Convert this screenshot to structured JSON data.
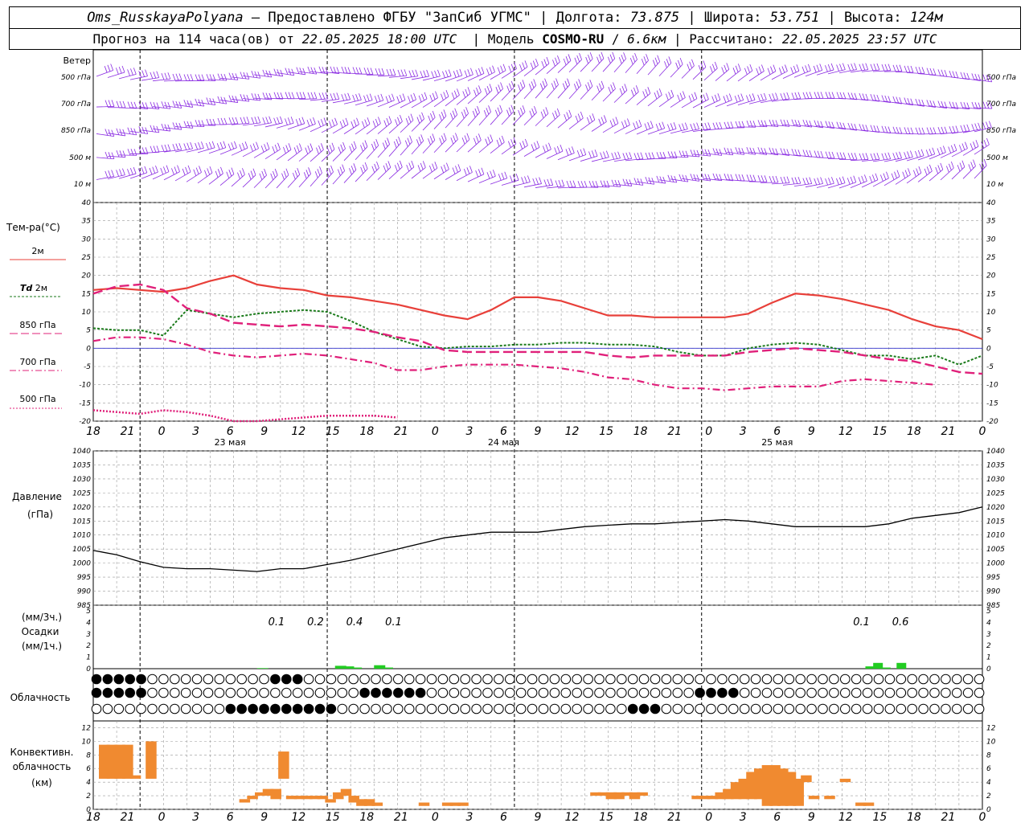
{
  "header": {
    "station": "Oms_RusskayaPolyana",
    "provider": "Предоставлено ФГБУ \"ЗапСиб УГМС\"",
    "lon_label": "Долгота:",
    "lon": "73.875",
    "lat_label": "Широта:",
    "lat": "53.751",
    "alt_label": "Высота:",
    "alt": "124м",
    "forecast_prefix": "Прогноз на 114 часа(ов) от",
    "forecast_from": "22.05.2025 18:00 UTC",
    "model_label": "Модель",
    "model": "COSMO-RU",
    "model_res": "6.6км",
    "computed_label": "Рассчитано:",
    "computed": "22.05.2025 23:57 UTC"
  },
  "labels": {
    "wind": "Ветер",
    "wind_levels": [
      "500 гПа",
      "700 гПа",
      "850 гПа",
      "500 м",
      "10 м"
    ],
    "temp": "Тем-ра(°C)",
    "t2m": "2м",
    "td": "Td",
    "td2m": "2м",
    "t850": "850 гПа",
    "t700": "700 гПа",
    "t500": "500 гПа",
    "pressure": "Давление",
    "pressure_unit": "(гПа)",
    "precip_unit3": "(мм/3ч.)",
    "precip": "Осадки",
    "precip_unit1": "(мм/1ч.)",
    "cloud": "Облачность",
    "conv1": "Конвективн.",
    "conv2": "облачность",
    "conv3": "(км)"
  },
  "days": [
    "23 мая",
    "24 мая",
    "25 мая"
  ],
  "hour_labels": [
    "18",
    "21",
    "0",
    "3",
    "6",
    "9",
    "12",
    "15",
    "18",
    "21",
    "0",
    "3",
    "6",
    "9",
    "12",
    "15",
    "18",
    "21",
    "0",
    "3",
    "6",
    "9",
    "12",
    "15",
    "18",
    "21",
    "0"
  ],
  "colors": {
    "t2m": "#e8403a",
    "td": "#1a7a1a",
    "t850": "#e0207a",
    "t700": "#e0207a",
    "t500": "#e0207a",
    "wind": "#8a2be2",
    "precip": "#22cc22",
    "conv": "#f08a30",
    "zero": "#3333cc"
  },
  "chart_data": [
    {
      "type": "line",
      "title": "Тем-ра(°C)",
      "x_hours": [
        0,
        3,
        6,
        9,
        12,
        15,
        18,
        21,
        24,
        27,
        30,
        33,
        36,
        39,
        42,
        45,
        48,
        51,
        54,
        57,
        60,
        63,
        66,
        69,
        72,
        75,
        78,
        81,
        84,
        87,
        90,
        93,
        96,
        99,
        102,
        105,
        108,
        111,
        114
      ],
      "ylim": [
        -20,
        40
      ],
      "series": [
        {
          "name": "2м",
          "values": [
            16,
            16.5,
            16,
            15.5,
            16.5,
            18.5,
            20,
            17.5,
            16.5,
            16,
            14.5,
            14,
            13,
            12,
            10.5,
            9,
            8,
            10.5,
            14,
            14,
            13,
            11,
            9,
            9,
            8.5,
            8.5,
            8.5,
            8.5,
            9.5,
            12.5,
            15,
            14.5,
            13.5,
            12,
            10.5,
            8,
            6,
            5,
            2.5
          ]
        },
        {
          "name": "Td 2м",
          "values": [
            5.5,
            5,
            5,
            3.5,
            10.5,
            9.5,
            8.5,
            9.5,
            10,
            10.5,
            10,
            7.5,
            4.5,
            2.5,
            0.5,
            0,
            0.5,
            0.5,
            1,
            1,
            1.5,
            1.5,
            1,
            1,
            0.5,
            -1,
            -2,
            -2,
            0,
            1,
            1.5,
            1,
            -0.5,
            -2,
            -2,
            -3,
            -2,
            -4.5,
            -2
          ]
        },
        {
          "name": "850 гПа",
          "values": [
            15,
            17,
            17.5,
            16,
            11,
            9.5,
            7,
            6.5,
            6,
            6.5,
            6,
            5.5,
            4.5,
            3,
            2,
            -0.5,
            -1,
            -1,
            -1,
            -1,
            -1,
            -1,
            -2,
            -2.5,
            -2,
            -2,
            -2,
            -2,
            -1,
            -0.5,
            0,
            -0.5,
            -1,
            -2,
            -3,
            -3.5,
            -5,
            -6.5,
            -7
          ]
        },
        {
          "name": "700 гПа",
          "values": [
            2,
            3,
            3,
            2.5,
            1,
            -1,
            -2,
            -2.5,
            -2,
            -1.5,
            -2,
            -3,
            -4,
            -6,
            -6,
            -5,
            -4.5,
            -4.5,
            -4.5,
            -5,
            -5.5,
            -6.5,
            -8,
            -8.5,
            -10,
            -11,
            -11,
            -11.5,
            -11,
            -10.5,
            -10.5,
            -10.5,
            -9,
            -8.5,
            -9,
            -9.5,
            -10
          ]
        },
        {
          "name": "500 гПа",
          "values": [
            -17,
            -17.5,
            -18,
            -17,
            -17.5,
            -18.5,
            -20,
            -20,
            -19.5,
            -19,
            -18.5,
            -18.5,
            -18.5,
            -19
          ]
        }
      ]
    },
    {
      "type": "line",
      "title": "Давление",
      "ylabel": "(гПа)",
      "ylim": [
        985,
        1040
      ],
      "x_hours": [
        0,
        3,
        6,
        9,
        12,
        15,
        18,
        21,
        24,
        27,
        30,
        33,
        36,
        39,
        42,
        45,
        48,
        51,
        54,
        57,
        60,
        63,
        66,
        69,
        72,
        75,
        78,
        81,
        84,
        87,
        90,
        93,
        96,
        99,
        102,
        105,
        108,
        111,
        114
      ],
      "series": [
        {
          "name": "",
          "values": [
            1004.5,
            1003,
            1000.5,
            998.5,
            998,
            998,
            997.5,
            997,
            998,
            998,
            999.5,
            1001,
            1003,
            1005,
            1007,
            1009,
            1010,
            1011,
            1011,
            1011,
            1012,
            1013,
            1013.5,
            1014,
            1014,
            1014.5,
            1015,
            1015.5,
            1015,
            1014,
            1013,
            1013,
            1013,
            1013,
            1014,
            1016,
            1017,
            1018,
            1020
          ]
        }
      ]
    },
    {
      "type": "bar",
      "title": "Осадки",
      "ylim": [
        0,
        5
      ],
      "x_hours": [
        21,
        31,
        32,
        33,
        36,
        37
      ],
      "values": [
        0.05,
        0.25,
        0.2,
        0.1,
        0.3,
        0.1
      ],
      "annotations": [
        {
          "x_hours": 23.5,
          "text": "0.1"
        },
        {
          "x_hours": 28.5,
          "text": "0.2"
        },
        {
          "x_hours": 33.5,
          "text": "0.4"
        },
        {
          "x_hours": 38.5,
          "text": "0.1"
        },
        {
          "x_hours": 98.5,
          "text": "0.1"
        },
        {
          "x_hours": 103.5,
          "text": "0.6"
        }
      ],
      "series2_hours": [
        99,
        100,
        101,
        103
      ],
      "series2_values": [
        0.2,
        0.5,
        0.1,
        0.5
      ]
    },
    {
      "type": "bar",
      "title": "Конвективн. облачность (км)",
      "ylim": [
        0,
        13
      ],
      "segments": [
        {
          "h": 0,
          "b": 4.5,
          "t": 9.5
        },
        {
          "h": 1,
          "b": 4.5,
          "t": 9.5
        },
        {
          "h": 2,
          "b": 4.5,
          "t": 9.5
        },
        {
          "h": 3,
          "b": 4.5,
          "t": 9.5
        },
        {
          "h": 4,
          "b": 4.5,
          "t": 5
        },
        {
          "h": 6,
          "b": 4.5,
          "t": 10
        },
        {
          "h": 18,
          "b": 1,
          "t": 1.5
        },
        {
          "h": 19,
          "b": 1.5,
          "t": 2
        },
        {
          "h": 20,
          "b": 2,
          "t": 2.5
        },
        {
          "h": 21,
          "b": 2,
          "t": 3
        },
        {
          "h": 22,
          "b": 1.5,
          "t": 3
        },
        {
          "h": 23,
          "b": 4.5,
          "t": 8.5
        },
        {
          "h": 24,
          "b": 1.5,
          "t": 2
        },
        {
          "h": 25,
          "b": 1.5,
          "t": 2
        },
        {
          "h": 26,
          "b": 1.5,
          "t": 2
        },
        {
          "h": 27,
          "b": 1.5,
          "t": 2
        },
        {
          "h": 28,
          "b": 1.5,
          "t": 2
        },
        {
          "h": 29,
          "b": 1,
          "t": 1.5
        },
        {
          "h": 30,
          "b": 1.5,
          "t": 2.5
        },
        {
          "h": 31,
          "b": 2,
          "t": 3
        },
        {
          "h": 32,
          "b": 1,
          "t": 2
        },
        {
          "h": 33,
          "b": 0.5,
          "t": 1.5
        },
        {
          "h": 34,
          "b": 0.5,
          "t": 1.5
        },
        {
          "h": 35,
          "b": 0.5,
          "t": 1
        },
        {
          "h": 41,
          "b": 0.5,
          "t": 1
        },
        {
          "h": 44,
          "b": 0.5,
          "t": 1
        },
        {
          "h": 45,
          "b": 0.5,
          "t": 1
        },
        {
          "h": 46,
          "b": 0.5,
          "t": 1
        },
        {
          "h": 63,
          "b": 2,
          "t": 2.5
        },
        {
          "h": 64,
          "b": 2,
          "t": 2.5
        },
        {
          "h": 65,
          "b": 1.5,
          "t": 2.5
        },
        {
          "h": 66,
          "b": 1.5,
          "t": 2.5
        },
        {
          "h": 67,
          "b": 2,
          "t": 2.5
        },
        {
          "h": 68,
          "b": 1.5,
          "t": 2.5
        },
        {
          "h": 69,
          "b": 2,
          "t": 2.5
        },
        {
          "h": 76,
          "b": 1.5,
          "t": 2
        },
        {
          "h": 77,
          "b": 1.5,
          "t": 2
        },
        {
          "h": 78,
          "b": 1.5,
          "t": 2
        },
        {
          "h": 79,
          "b": 1.5,
          "t": 2.5
        },
        {
          "h": 80,
          "b": 1.5,
          "t": 3
        },
        {
          "h": 81,
          "b": 1.5,
          "t": 4
        },
        {
          "h": 82,
          "b": 1.5,
          "t": 4.5
        },
        {
          "h": 83,
          "b": 1.5,
          "t": 5.5
        },
        {
          "h": 84,
          "b": 1.5,
          "t": 6
        },
        {
          "h": 85,
          "b": 0.5,
          "t": 6.5
        },
        {
          "h": 86,
          "b": 0.5,
          "t": 6.5
        },
        {
          "h": 87,
          "b": 0.5,
          "t": 6
        },
        {
          "h": 88,
          "b": 0.5,
          "t": 5.5
        },
        {
          "h": 89,
          "b": 0.5,
          "t": 4.5
        },
        {
          "h": 90,
          "b": 4,
          "t": 5
        },
        {
          "h": 91,
          "b": 1.5,
          "t": 2
        },
        {
          "h": 93,
          "b": 1.5,
          "t": 2
        },
        {
          "h": 95,
          "b": 4,
          "t": 4.5
        },
        {
          "h": 97,
          "b": 0.5,
          "t": 1
        },
        {
          "h": 98,
          "b": 0.5,
          "t": 1
        }
      ]
    }
  ]
}
